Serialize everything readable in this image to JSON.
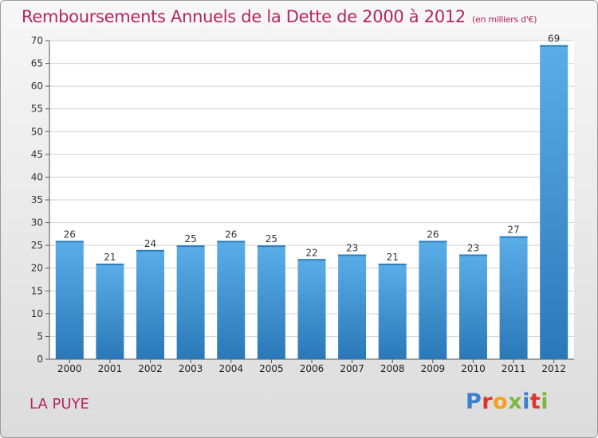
{
  "title": "Remboursements Annuels de la Dette de 2000 à 2012",
  "unit": "(en milliers d'€)",
  "commune": "LA PUYE",
  "logo": {
    "text": "Proxiti",
    "colors": [
      "#3a7fd0",
      "#e0332a",
      "#f5a01b",
      "#7ab842",
      "#3a7fd0",
      "#e0332a",
      "#7ab842"
    ]
  },
  "chart_data": {
    "type": "bar",
    "categories": [
      "2000",
      "2001",
      "2002",
      "2003",
      "2004",
      "2005",
      "2006",
      "2007",
      "2008",
      "2009",
      "2010",
      "2011",
      "2012"
    ],
    "values": [
      26,
      21,
      24,
      25,
      26,
      25,
      22,
      23,
      21,
      26,
      23,
      27,
      69
    ],
    "ylim": [
      0,
      70
    ],
    "yticks": [
      0,
      5,
      10,
      15,
      20,
      25,
      30,
      35,
      40,
      45,
      50,
      55,
      60,
      65,
      70
    ],
    "grid": true,
    "bar_color_top": "#5aaee8",
    "bar_color_bottom": "#2a78b8"
  }
}
